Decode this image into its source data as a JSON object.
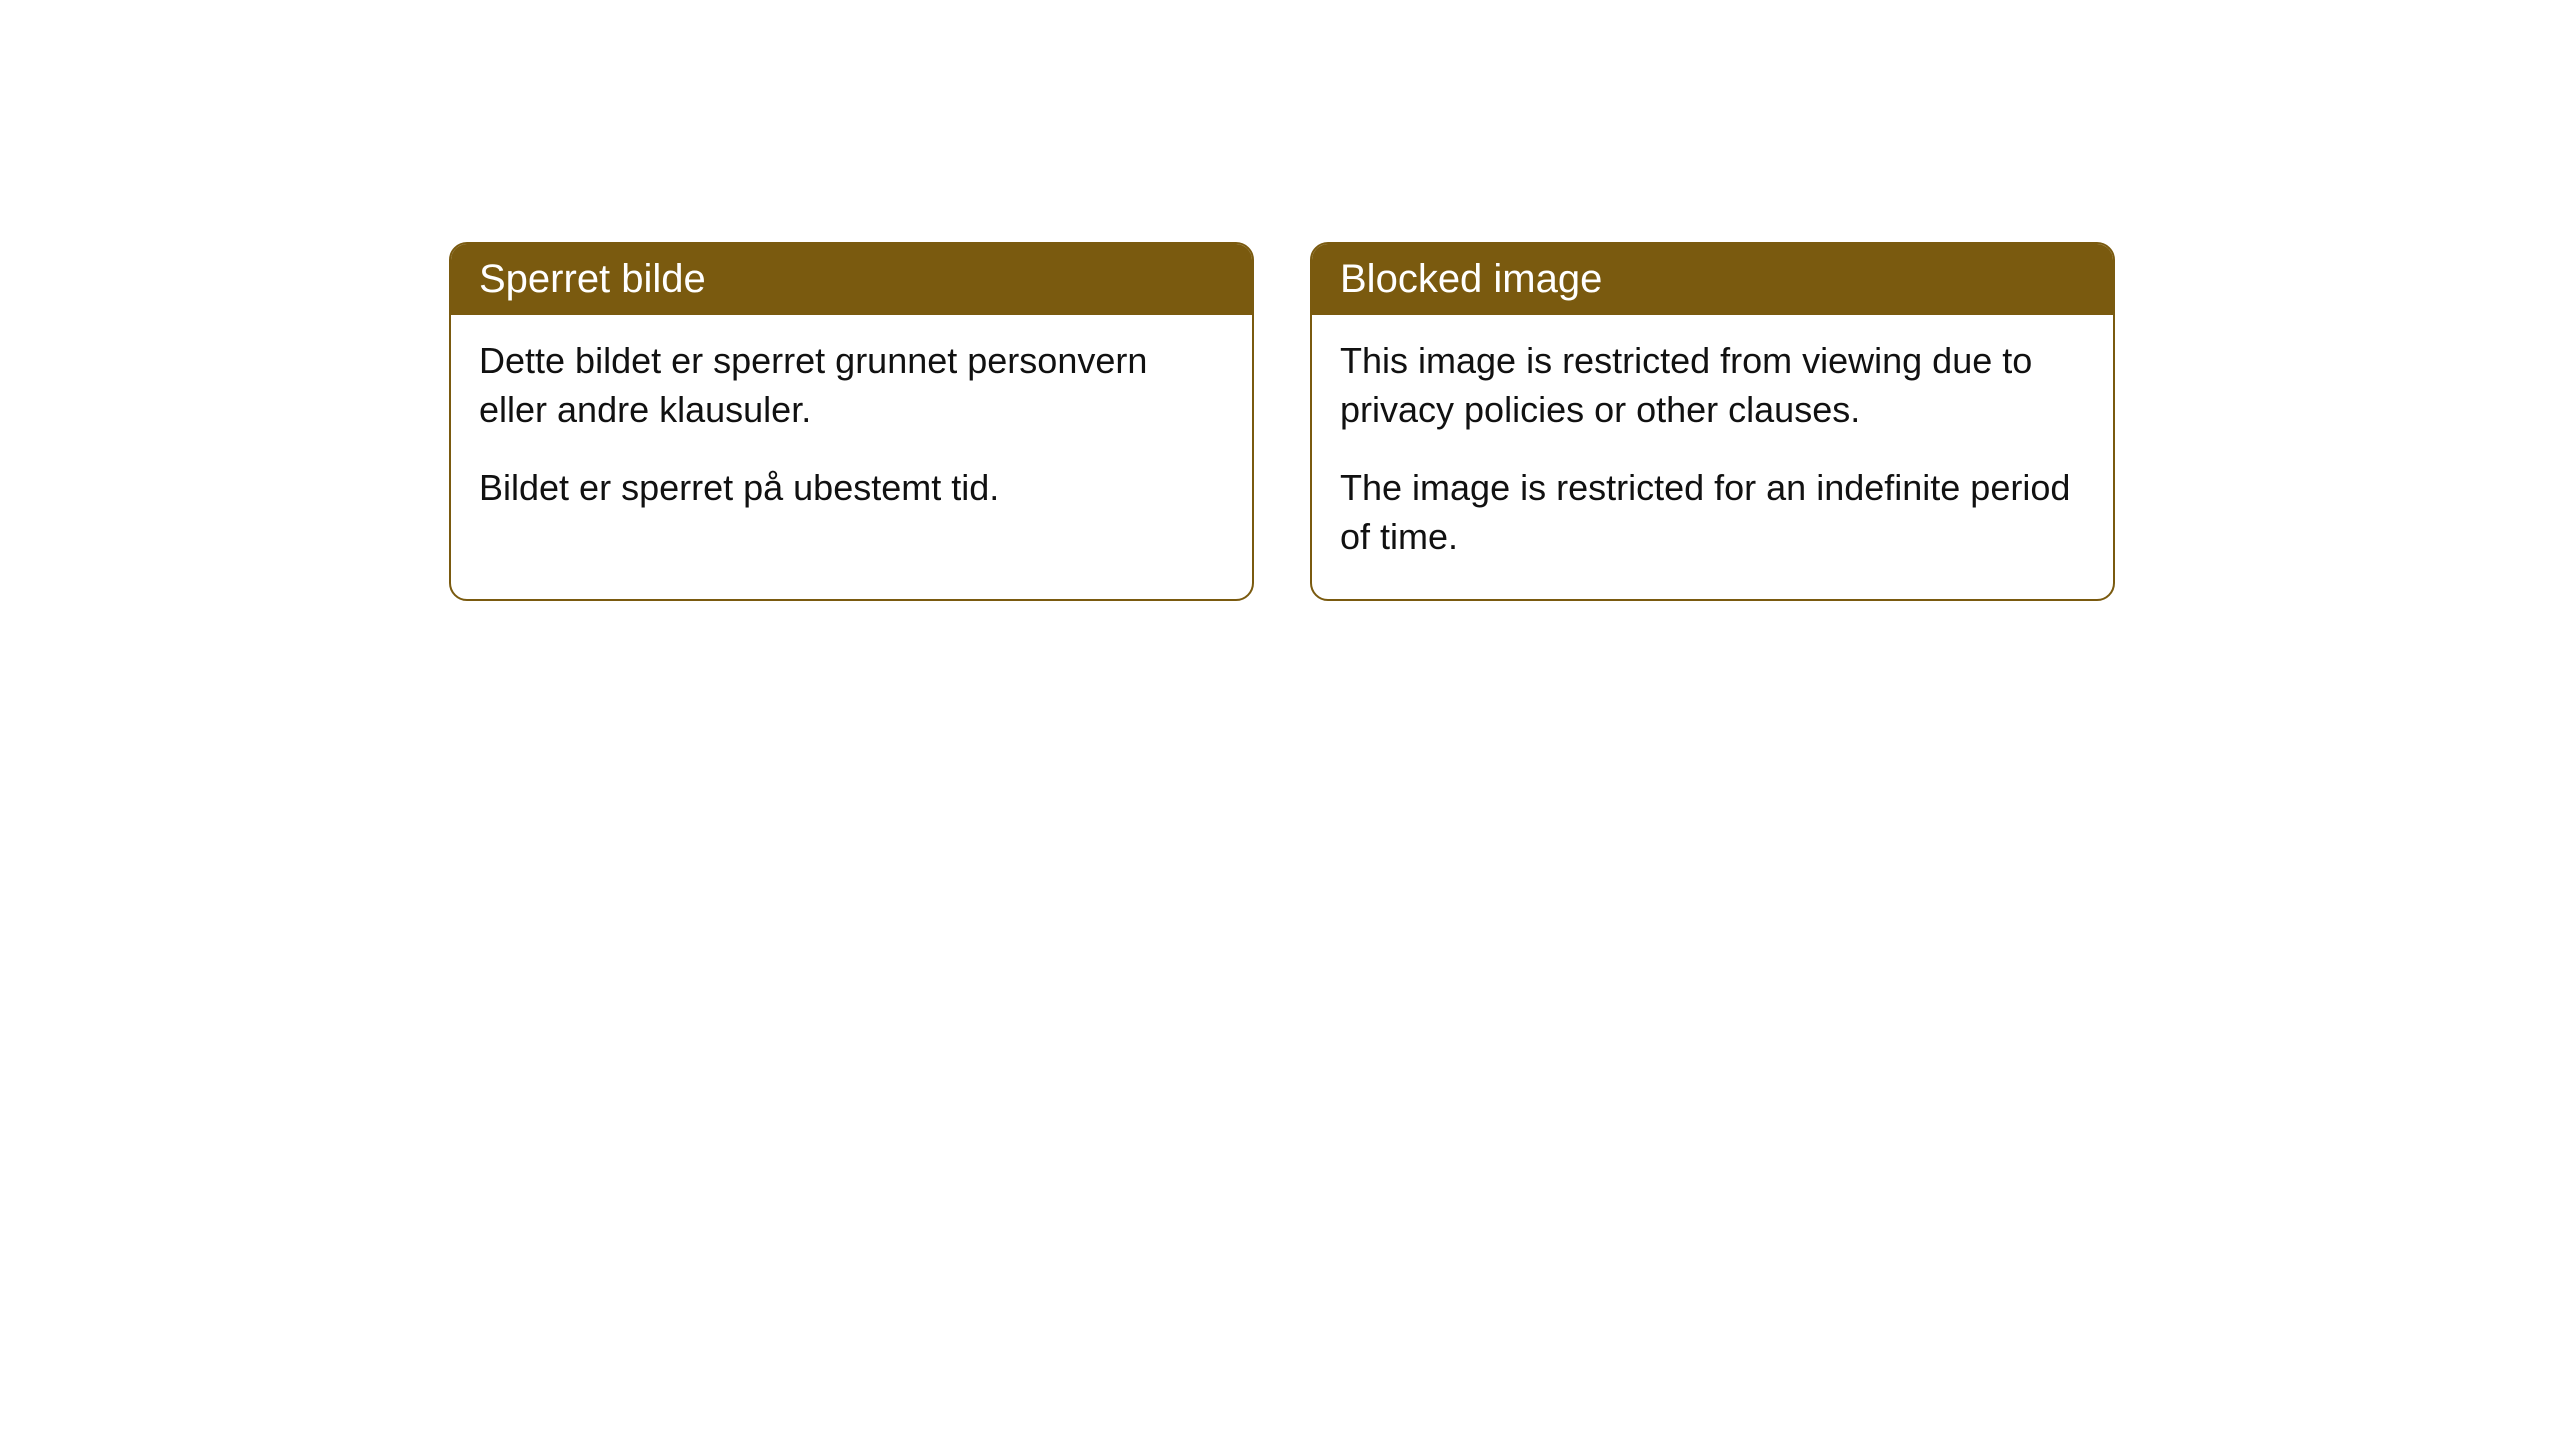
{
  "cards": [
    {
      "title": "Sperret bilde",
      "paragraph1": "Dette bildet er sperret grunnet personvern eller andre klausuler.",
      "paragraph2": "Bildet er sperret på ubestemt tid."
    },
    {
      "title": "Blocked image",
      "paragraph1": "This image is restricted from viewing due to privacy policies or other clauses.",
      "paragraph2": "The image is restricted for an indefinite period of time."
    }
  ],
  "colors": {
    "header_bg": "#7a5a0f",
    "header_text": "#ffffff",
    "body_text": "#111111",
    "card_bg": "#ffffff",
    "border": "#7a5a0f"
  }
}
